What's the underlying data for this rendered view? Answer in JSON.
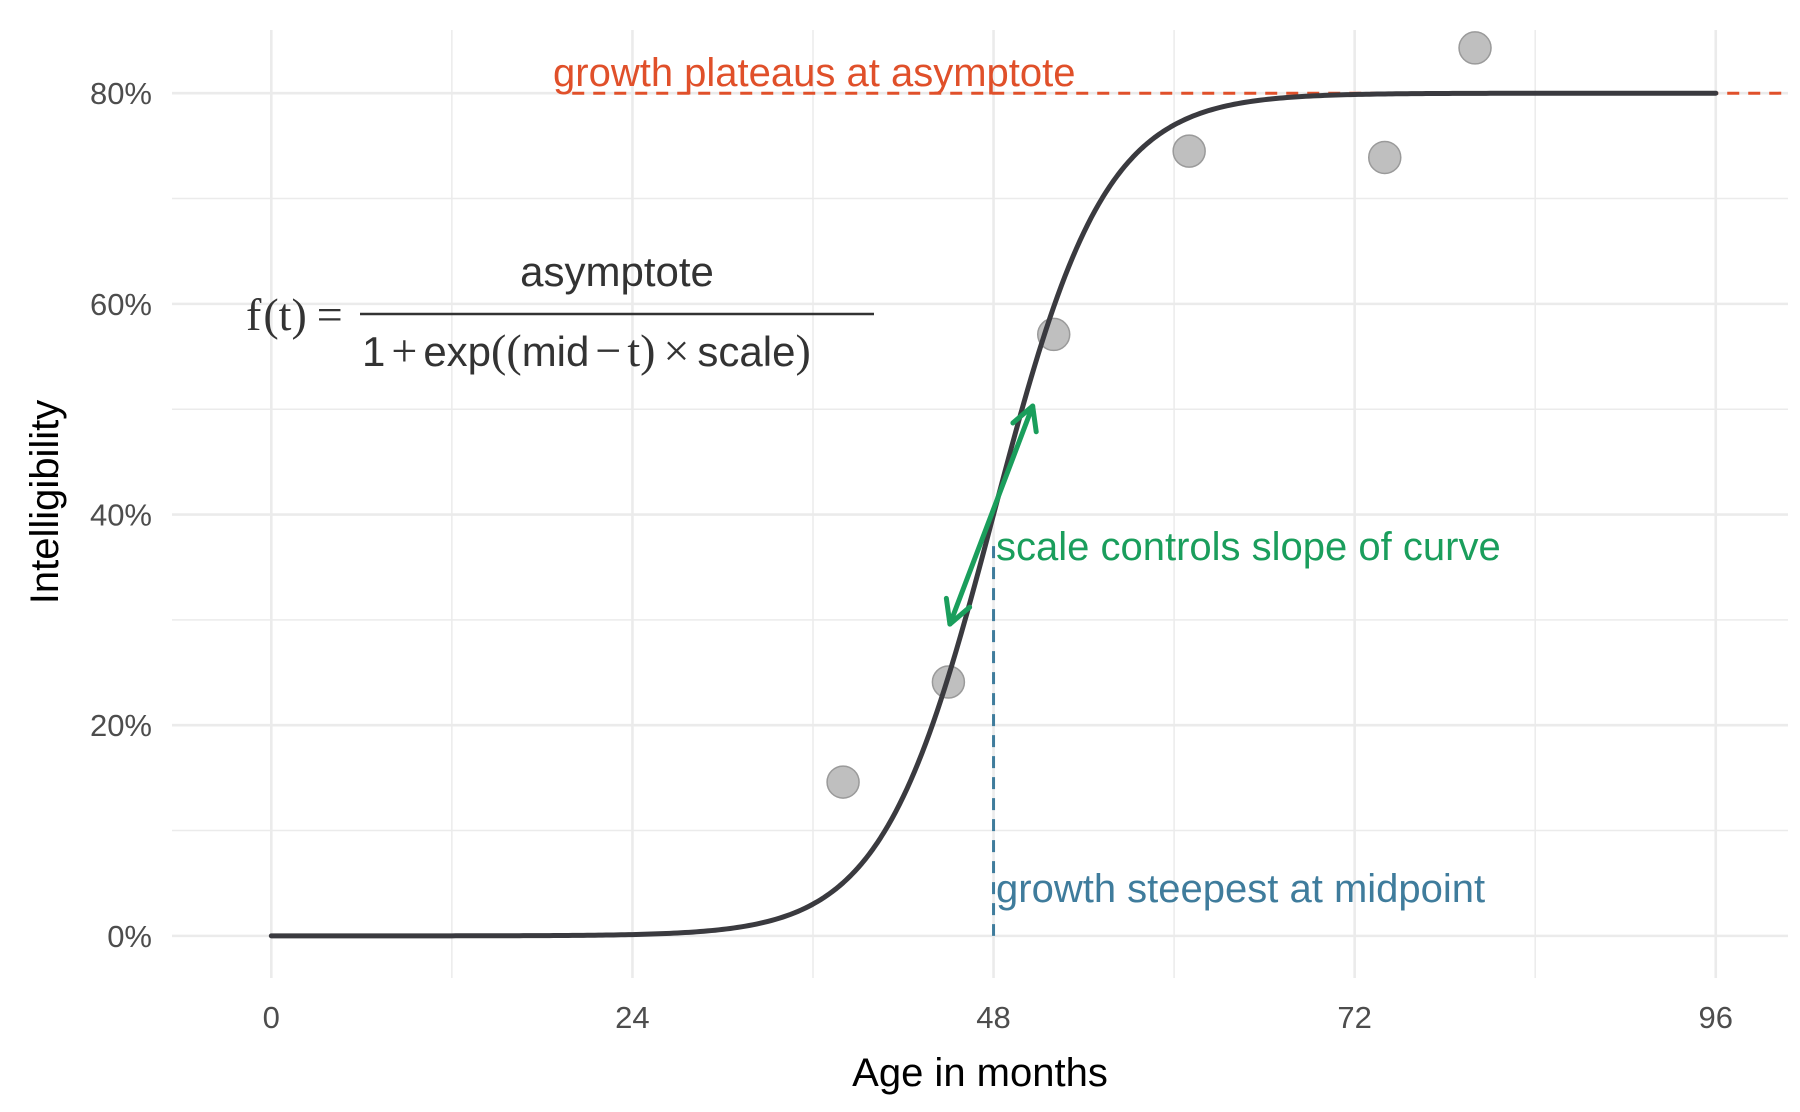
{
  "colors": {
    "curve": "#3a3a3f",
    "points": "#bfbfbf",
    "point_stroke": "#9a9a9a",
    "asymptote": "#e0502a",
    "slope": "#1a9e5c",
    "midpoint": "#3f7c9c"
  },
  "chart_data": {
    "type": "scatter",
    "title": "",
    "xlabel": "Age in months",
    "ylabel": "Intelligibility",
    "xlim": [
      -6.6,
      100.8
    ],
    "ylim": [
      -0.04,
      0.86
    ],
    "x_ticks": [
      0,
      24,
      48,
      72,
      96
    ],
    "x_tick_labels": [
      "0",
      "24",
      "48",
      "72",
      "96"
    ],
    "y_ticks": [
      0,
      0.2,
      0.4,
      0.6,
      0.8
    ],
    "y_tick_labels": [
      "0%",
      "20%",
      "40%",
      "60%",
      "80%"
    ],
    "grid": true,
    "points": [
      {
        "x": 38,
        "y": 0.146
      },
      {
        "x": 45,
        "y": 0.241
      },
      {
        "x": 52,
        "y": 0.571
      },
      {
        "x": 61,
        "y": 0.745
      },
      {
        "x": 74,
        "y": 0.739
      },
      {
        "x": 80,
        "y": 0.843
      }
    ],
    "curve": {
      "asymptote": 0.8,
      "mid": 48,
      "scale": 0.27
    },
    "slope_arrow": {
      "from": {
        "x": 45.1,
        "y": 0.296
      },
      "to": {
        "x": 50.6,
        "y": 0.503
      }
    },
    "asymptote_line": {
      "x_start": 20,
      "y": 0.8
    },
    "midpoint_line": {
      "x": 48,
      "y_top": 0.37
    }
  },
  "annotations": {
    "asymptote": "growth plateaus at asymptote",
    "slope": "scale controls slope of curve",
    "midpoint": "growth steepest at midpoint"
  },
  "formula": {
    "lhs_f": "f",
    "lhs_t": "t",
    "equals": "=",
    "numerator": "asymptote",
    "denominator": {
      "one": "1",
      "plus": "+",
      "exp": "exp",
      "mid": "mid",
      "minus": "−",
      "t": "t",
      "times": "×",
      "scale": "scale"
    }
  }
}
